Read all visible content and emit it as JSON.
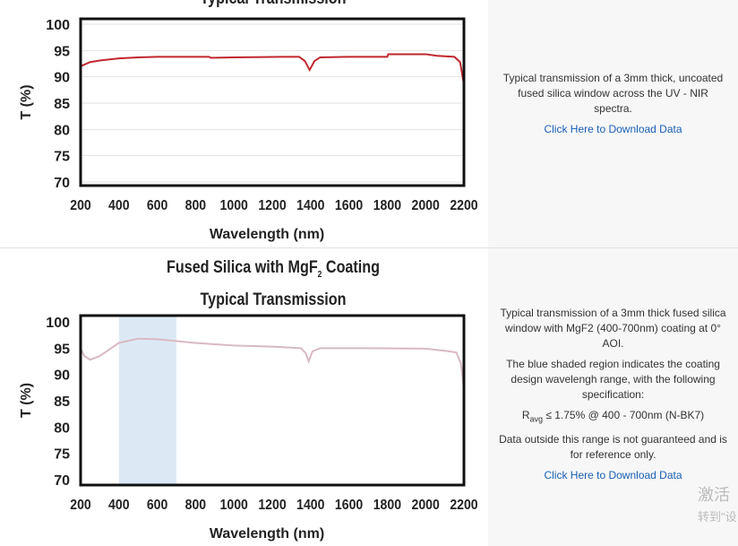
{
  "chart_data": [
    {
      "type": "line",
      "title": "Typical Transmission",
      "xlabel": "Wavelength (nm)",
      "ylabel": "T (%)",
      "xlim": [
        200,
        2200
      ],
      "ylim": [
        70,
        100
      ],
      "xticks": [
        "200",
        "400",
        "600",
        "800",
        "1000",
        "1200",
        "1400",
        "1600",
        "1800",
        "2000",
        "2200"
      ],
      "yticks": [
        "70",
        "75",
        "80",
        "85",
        "90",
        "95",
        "100"
      ],
      "grid": true,
      "color": "#c0272d",
      "points": [
        [
          200,
          92
        ],
        [
          250,
          92.8
        ],
        [
          300,
          93.1
        ],
        [
          400,
          93.5
        ],
        [
          500,
          93.7
        ],
        [
          600,
          93.8
        ],
        [
          870,
          93.8
        ],
        [
          880,
          93.6
        ],
        [
          1000,
          93.7
        ],
        [
          1260,
          93.8
        ],
        [
          1340,
          93.8
        ],
        [
          1370,
          93
        ],
        [
          1395,
          91.3
        ],
        [
          1420,
          93
        ],
        [
          1450,
          93.7
        ],
        [
          1600,
          93.8
        ],
        [
          1800,
          93.8
        ],
        [
          1805,
          94.3
        ],
        [
          2000,
          94.3
        ],
        [
          2060,
          94
        ],
        [
          2150,
          93.8
        ],
        [
          2180,
          92.8
        ],
        [
          2200,
          88.5
        ]
      ]
    },
    {
      "type": "line",
      "title": "Fused Silica with MgF2 Coating Typical Transmission",
      "xlabel": "Wavelength (nm)",
      "ylabel": "T (%)",
      "xlim": [
        200,
        2200
      ],
      "ylim": [
        70,
        100
      ],
      "xticks": [
        "200",
        "400",
        "600",
        "800",
        "1000",
        "1200",
        "1400",
        "1600",
        "1800",
        "2000",
        "2200"
      ],
      "yticks": [
        "70",
        "75",
        "80",
        "85",
        "90",
        "95",
        "100"
      ],
      "grid": false,
      "color": "#d8b9c3",
      "shade": [
        400,
        700
      ],
      "shade_color": "#dce9f5",
      "points": [
        [
          200,
          95
        ],
        [
          220,
          93.5
        ],
        [
          250,
          92.8
        ],
        [
          300,
          93.5
        ],
        [
          400,
          96
        ],
        [
          500,
          96.8
        ],
        [
          600,
          96.7
        ],
        [
          800,
          96
        ],
        [
          1000,
          95.5
        ],
        [
          1200,
          95.3
        ],
        [
          1350,
          95
        ],
        [
          1375,
          94
        ],
        [
          1390,
          92.5
        ],
        [
          1410,
          94.4
        ],
        [
          1450,
          95
        ],
        [
          1700,
          95
        ],
        [
          2000,
          94.9
        ],
        [
          2100,
          94.5
        ],
        [
          2160,
          94.2
        ],
        [
          2185,
          92
        ],
        [
          2200,
          87
        ]
      ]
    }
  ],
  "top_title": "Typical Transmission",
  "bottom_title": {
    "line1a": "Fused Silica with MgF",
    "sub": "2",
    "line1b": " Coating",
    "line2": "Typical Transmission"
  },
  "panel1": {
    "text": "Typical transmission of a 3mm thick, uncoated fused silica window across the UV - NIR spectra.",
    "link": "Click Here to Download Data"
  },
  "panel2": {
    "p1": "Typical transmission of a 3mm thick fused silica window with MgF2 (400-700nm) coating at 0° AOI.",
    "p2": "The blue shaded region indicates the coating design wavelengh range, with the following specification:",
    "spec_r": "R",
    "spec_sub": "avg",
    "spec_rest": " ≤ 1.75% @ 400 - 700nm (N-BK7)",
    "p3": "Data outside this range is not guaranteed and is for reference only.",
    "link": "Click Here to Download Data"
  },
  "watermark": {
    "line1": "激活",
    "line2": "转到\"设"
  }
}
